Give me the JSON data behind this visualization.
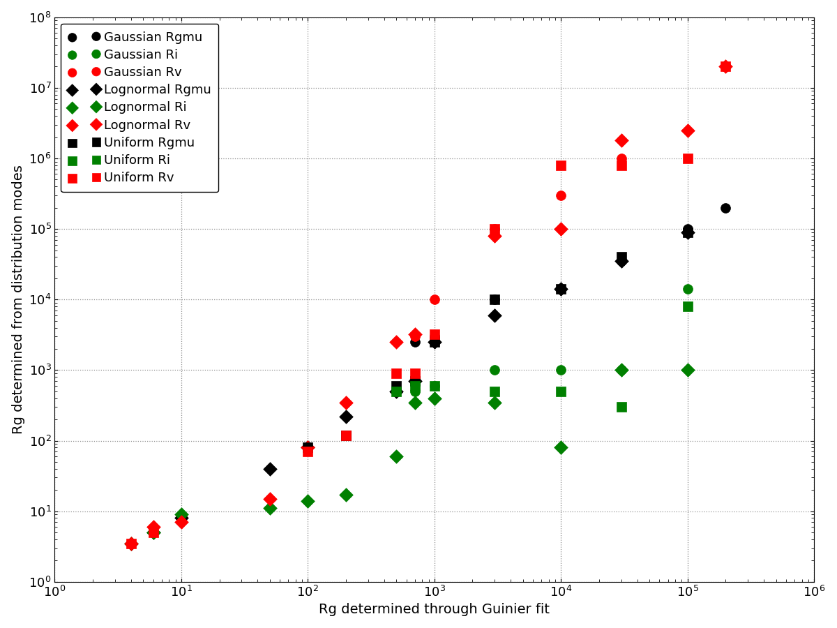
{
  "xlabel": "Rg determined through Guinier fit",
  "ylabel": "Rg determined from distribution modes",
  "xlim": [
    1,
    1000000.0
  ],
  "ylim": [
    1,
    100000000.0
  ],
  "grid_color": "#777777",
  "background_color": "#ffffff",
  "series": [
    {
      "label": "Gaussian Rgmu",
      "color": "black",
      "marker": "o",
      "markersize": 10,
      "x": [
        4,
        6,
        10,
        700,
        1000,
        3000,
        10000,
        30000,
        100000,
        200000
      ],
      "y": [
        3.5,
        5,
        8,
        2500,
        3000,
        10000,
        14000,
        35000,
        100000,
        200000
      ]
    },
    {
      "label": "Gaussian Ri",
      "color": "green",
      "marker": "o",
      "markersize": 10,
      "x": [
        4,
        6,
        10,
        700,
        1000,
        3000,
        10000,
        30000,
        100000
      ],
      "y": [
        3.5,
        5,
        8,
        500,
        600,
        1000,
        1000,
        1000,
        14000
      ]
    },
    {
      "label": "Gaussian Rv",
      "color": "red",
      "marker": "o",
      "markersize": 10,
      "x": [
        4,
        6,
        10,
        700,
        1000,
        3000,
        10000,
        30000
      ],
      "y": [
        3.5,
        5,
        8,
        3000,
        10000,
        100000,
        300000,
        1000000
      ]
    },
    {
      "label": "Lognormal Rgmu",
      "color": "black",
      "marker": "D",
      "markersize": 10,
      "x": [
        4,
        6,
        10,
        50,
        100,
        200,
        500,
        700,
        1000,
        3000,
        10000,
        30000,
        100000
      ],
      "y": [
        3.5,
        5,
        8,
        40,
        80,
        220,
        500,
        700,
        2500,
        6000,
        14000,
        35000,
        90000
      ]
    },
    {
      "label": "Lognormal Ri",
      "color": "green",
      "marker": "D",
      "markersize": 10,
      "x": [
        4,
        6,
        10,
        50,
        100,
        200,
        500,
        700,
        1000,
        3000,
        10000,
        30000,
        100000
      ],
      "y": [
        3.5,
        5,
        9,
        11,
        14,
        17,
        60,
        350,
        400,
        350,
        80,
        1000,
        1000
      ]
    },
    {
      "label": "Lognormal Rv",
      "color": "red",
      "marker": "D",
      "markersize": 10,
      "x": [
        4,
        6,
        10,
        50,
        100,
        200,
        500,
        700,
        3000,
        10000,
        30000,
        100000,
        200000
      ],
      "y": [
        3.5,
        6,
        7,
        15,
        80,
        350,
        2500,
        3200,
        80000,
        100000,
        1800000,
        2500000,
        20000000
      ]
    },
    {
      "label": "Uniform Rgmu",
      "color": "black",
      "marker": "s",
      "markersize": 10,
      "x": [
        100,
        200,
        500,
        700,
        1000,
        3000,
        10000,
        30000,
        100000
      ],
      "y": [
        80,
        120,
        600,
        700,
        2500,
        10000,
        14000,
        40000,
        90000
      ]
    },
    {
      "label": "Uniform Ri",
      "color": "green",
      "marker": "s",
      "markersize": 10,
      "x": [
        500,
        700,
        1000,
        3000,
        10000,
        30000,
        100000
      ],
      "y": [
        500,
        600,
        600,
        500,
        500,
        300,
        8000
      ]
    },
    {
      "label": "Uniform Rv",
      "color": "red",
      "marker": "s",
      "markersize": 10,
      "x": [
        4,
        6,
        100,
        200,
        500,
        700,
        1000,
        3000,
        10000,
        30000,
        100000,
        200000
      ],
      "y": [
        3.5,
        5,
        70,
        120,
        900,
        900,
        3200,
        100000,
        800000,
        800000,
        1000000,
        20000000
      ]
    }
  ],
  "legend_fontsize": 13,
  "axis_fontsize": 14,
  "tick_fontsize": 13,
  "markersize_legend": 8
}
